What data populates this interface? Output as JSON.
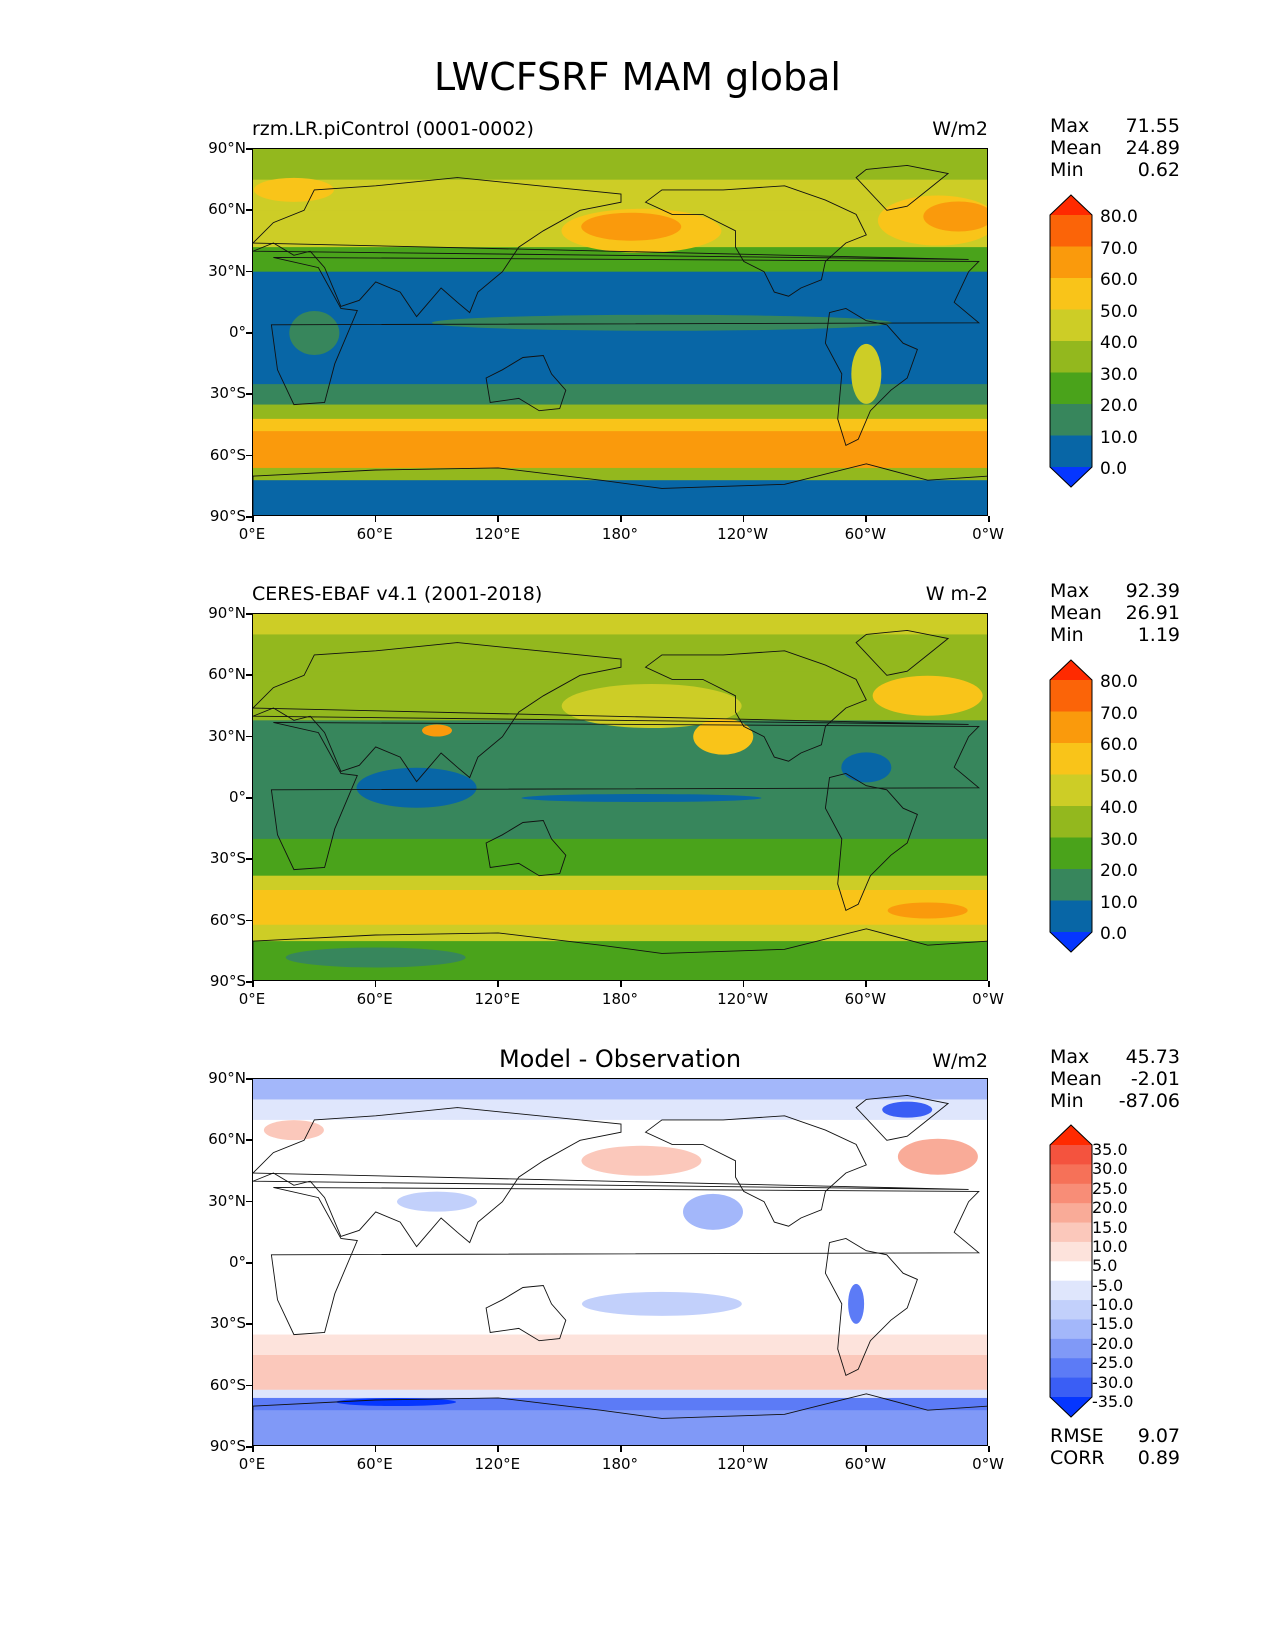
{
  "figure": {
    "title": "LWCFSRF MAM global"
  },
  "axes": {
    "lat_ticks": [
      "90°N",
      "60°N",
      "30°N",
      "0°",
      "30°S",
      "60°S",
      "90°S"
    ],
    "lon_ticks": [
      "0°E",
      "60°E",
      "120°E",
      "180°",
      "120°W",
      "60°W",
      "0°W"
    ]
  },
  "panels": [
    {
      "title": "rzm.LR.piControl (0001-0002)",
      "units": "W/m2",
      "stats": [
        {
          "label": "Max",
          "value": "71.55"
        },
        {
          "label": "Mean",
          "value": "24.89"
        },
        {
          "label": "Min",
          "value": "0.62"
        }
      ]
    },
    {
      "title": "CERES-EBAF v4.1 (2001-2018)",
      "units": "W m-2",
      "stats": [
        {
          "label": "Max",
          "value": "92.39"
        },
        {
          "label": "Mean",
          "value": "26.91"
        },
        {
          "label": "Min",
          "value": "1.19"
        }
      ]
    },
    {
      "title": "Model - Observation",
      "units": "W/m2",
      "stats": [
        {
          "label": "Max",
          "value": "45.73"
        },
        {
          "label": "Mean",
          "value": "-2.01"
        },
        {
          "label": "Min",
          "value": "-87.06"
        }
      ],
      "metrics": [
        {
          "label": "RMSE",
          "value": "9.07"
        },
        {
          "label": "CORR",
          "value": "0.89"
        }
      ]
    }
  ],
  "colorbars": {
    "field_levels": [
      "80.0",
      "70.0",
      "60.0",
      "50.0",
      "40.0",
      "30.0",
      "20.0",
      "10.0",
      "0.0"
    ],
    "field_colors": [
      "#ff2a00",
      "#fb6408",
      "#fa9a0c",
      "#f9c419",
      "#cdcd26",
      "#93b81e",
      "#4aa31b",
      "#37865c",
      "#0866a6",
      "#0536ff"
    ],
    "diff_levels": [
      "35.0",
      "30.0",
      "25.0",
      "20.0",
      "15.0",
      "10.0",
      "5.0",
      "-5.0",
      "-10.0",
      "-15.0",
      "-20.0",
      "-25.0",
      "-30.0",
      "-35.0"
    ],
    "diff_colors": [
      "#ff2a00",
      "#f4533e",
      "#f67158",
      "#f88d77",
      "#f9ab98",
      "#fbc8bb",
      "#fde3dc",
      "#ffffff",
      "#dfe6fc",
      "#c2d0fb",
      "#a3b7fa",
      "#8099f7",
      "#5c7bf6",
      "#3a5ef5",
      "#0536ff"
    ]
  }
}
